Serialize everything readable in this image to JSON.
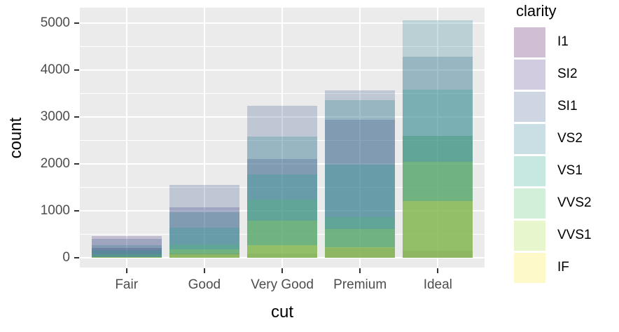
{
  "chart_data": {
    "type": "bar",
    "variant": "overlaid-identity-translucent",
    "title": "",
    "xlabel": "cut",
    "ylabel": "count",
    "legend_title": "clarity",
    "legend_position": "right",
    "grid": true,
    "categories": [
      "Fair",
      "Good",
      "Very Good",
      "Premium",
      "Ideal"
    ],
    "series": [
      {
        "name": "I1",
        "color": "#440154",
        "values": [
          210,
          96,
          84,
          205,
          146
        ]
      },
      {
        "name": "SI2",
        "color": "#46327E",
        "values": [
          466,
          1081,
          2100,
          2949,
          2598
        ]
      },
      {
        "name": "SI1",
        "color": "#365C8D",
        "values": [
          408,
          1560,
          3240,
          3575,
          4282
        ]
      },
      {
        "name": "VS2",
        "color": "#277F8E",
        "values": [
          261,
          978,
          2591,
          3357,
          5071
        ]
      },
      {
        "name": "VS1",
        "color": "#1FA187",
        "values": [
          170,
          648,
          1775,
          1989,
          3589
        ]
      },
      {
        "name": "VVS2",
        "color": "#4AC16D",
        "values": [
          69,
          286,
          1235,
          870,
          2606
        ]
      },
      {
        "name": "VVS1",
        "color": "#A0DA39",
        "values": [
          17,
          186,
          789,
          616,
          2047
        ]
      },
      {
        "name": "IF",
        "color": "#FDE725",
        "values": [
          9,
          71,
          268,
          230,
          1212
        ]
      }
    ],
    "fill_alpha": 0.25,
    "y_ticks": [
      0,
      1000,
      2000,
      3000,
      4000,
      5000
    ],
    "y_minor_ticks": [
      500,
      1500,
      2500,
      3500,
      4500
    ],
    "ylim": [
      -210,
      5335
    ],
    "bar_width_fraction": 0.9
  },
  "colors": {
    "panel_bg": "#EBEBEB",
    "grid": "#FFFFFF",
    "tick_text": "#4D4D4D",
    "axis_title_text": "#000000",
    "tick_mark": "#333333"
  }
}
